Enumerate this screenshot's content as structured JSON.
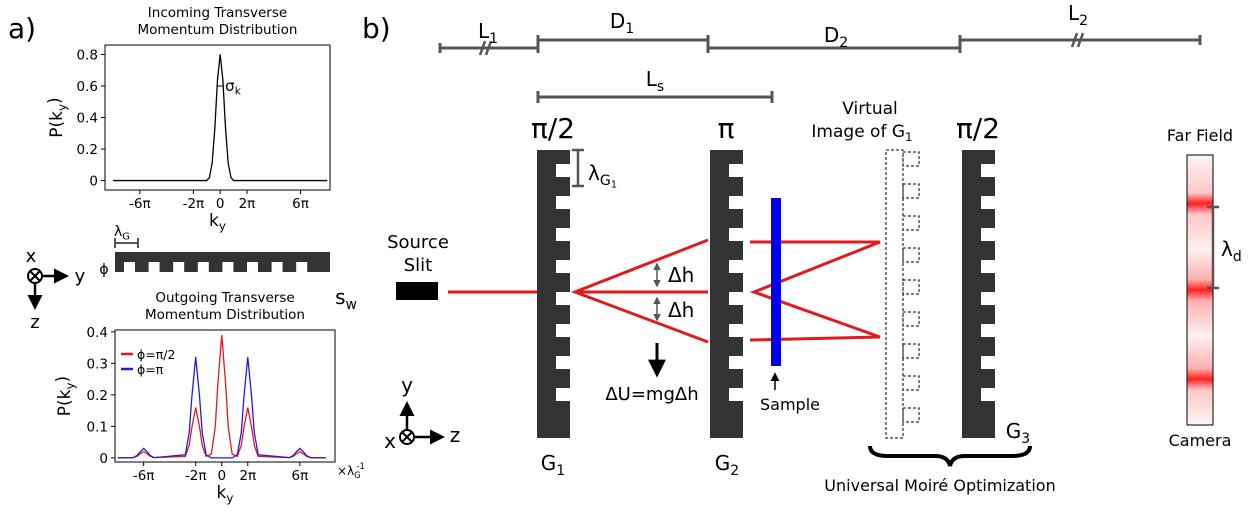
{
  "panels": {
    "a": "a)",
    "b": "b)"
  },
  "chart_data": [
    {
      "type": "line",
      "title": [
        "Incoming Transverse",
        "Momentum Distribution"
      ],
      "xlabel": {
        "main": "k",
        "sub": "y"
      },
      "ylabel": {
        "main": "P(k",
        "sub": "y",
        "end": ")"
      },
      "annotation": {
        "main": "σ",
        "sub": "k"
      },
      "x": [
        -8,
        -2,
        -1,
        -0.8,
        -0.6,
        -0.4,
        -0.2,
        0,
        0.2,
        0.4,
        0.6,
        0.8,
        1,
        2,
        8
      ],
      "values": [
        0,
        0,
        0,
        0.02,
        0.11,
        0.33,
        0.64,
        0.8,
        0.64,
        0.33,
        0.11,
        0.02,
        0,
        0,
        0
      ],
      "color": "#000000",
      "xlim": [
        -8.6,
        8.2
      ],
      "ylim": [
        -0.06,
        0.86
      ],
      "xticks": [
        {
          "value": -6,
          "label": "-6π"
        },
        {
          "value": -2,
          "label": "-2π"
        },
        0,
        {
          "value": 2,
          "label": "2π"
        },
        {
          "value": 6,
          "label": "6π"
        }
      ],
      "yticks": [
        0,
        0.2,
        0.4,
        0.6,
        0.8
      ]
    },
    {
      "type": "line",
      "title": [
        "Outgoing Transverse",
        "Momentum Distribution"
      ],
      "xlabel": {
        "main": "k",
        "sub": "y"
      },
      "ylabel": {
        "main": "P(k",
        "sub": "y",
        "end": ")"
      },
      "x_unit": {
        "main": "×λ",
        "sub": "G",
        "sup": "-1"
      },
      "x": [
        -8,
        -6.8,
        -6.5,
        -6.3,
        -6,
        -5.7,
        -5.5,
        -5.2,
        -2.8,
        -2.5,
        -2.3,
        -2,
        -1.7,
        -1.5,
        -1.2,
        -0.8,
        -0.5,
        -0.3,
        0,
        0.3,
        0.5,
        0.8,
        1.2,
        1.5,
        1.7,
        2,
        2.3,
        2.5,
        2.8,
        5.2,
        5.5,
        5.7,
        6,
        6.3,
        6.5,
        6.8,
        8
      ],
      "series": [
        {
          "name": "ϕ=π/2",
          "color": "#e31a1c",
          "values": [
            0,
            0.001,
            0.005,
            0.012,
            0.02,
            0.012,
            0.005,
            0.001,
            0.005,
            0.04,
            0.096,
            0.16,
            0.096,
            0.04,
            0.005,
            0.012,
            0.098,
            0.234,
            0.39,
            0.234,
            0.098,
            0.012,
            0.005,
            0.04,
            0.096,
            0.16,
            0.096,
            0.04,
            0.005,
            0.001,
            0.005,
            0.012,
            0.02,
            0.012,
            0.005,
            0.001,
            0
          ]
        },
        {
          "name": "ϕ=π",
          "color": "#1f1fd6",
          "values": [
            0,
            0.001,
            0.008,
            0.018,
            0.03,
            0.018,
            0.008,
            0.001,
            0.01,
            0.08,
            0.192,
            0.32,
            0.192,
            0.08,
            0.01,
            0,
            0,
            0,
            0,
            0,
            0,
            0,
            0.01,
            0.08,
            0.192,
            0.32,
            0.192,
            0.08,
            0.01,
            0.001,
            0.008,
            0.018,
            0.03,
            0.018,
            0.008,
            0.001,
            0
          ]
        }
      ],
      "legend": "upper left",
      "xlim": [
        -8.2,
        8.7
      ],
      "ylim": [
        -0.013,
        0.406
      ],
      "xticks": [
        {
          "value": -6,
          "label": "-6π"
        },
        {
          "value": -2,
          "label": "-2π"
        },
        0,
        {
          "value": 2,
          "label": "2π"
        },
        {
          "value": 6,
          "label": "6π"
        }
      ],
      "yticks": [
        0,
        0.1,
        0.2,
        0.3,
        0.4
      ]
    }
  ],
  "grating_a": {
    "period": {
      "main": "λ",
      "sub": "G"
    },
    "phase": "ϕ"
  },
  "axes_a": {
    "x": "x",
    "y": "y",
    "z": "z"
  },
  "diagram": {
    "top_scale": {
      "L1": {
        "main": "L",
        "sub": "1"
      },
      "D1": {
        "main": "D",
        "sub": "1"
      },
      "D2": {
        "main": "D",
        "sub": "2"
      },
      "L2": {
        "main": "L",
        "sub": "2"
      },
      "Ls": {
        "main": "L",
        "sub": "s"
      }
    },
    "phases": [
      "π/2",
      "π",
      "π/2"
    ],
    "grating_period": {
      "main": "λ",
      "sub": "G",
      "sub2": "1"
    },
    "source_slit": [
      "Source",
      "Slit"
    ],
    "slit_width": {
      "main": "s",
      "sub": "w"
    },
    "delta_h": [
      "Δh",
      "Δh"
    ],
    "energy": "ΔU=mgΔh",
    "sample": "Sample",
    "virtual_image": [
      "Virtual",
      {
        "main": "Image of G",
        "sub": "1"
      }
    ],
    "gratings": [
      {
        "main": "G",
        "sub": "1"
      },
      {
        "main": "G",
        "sub": "2"
      },
      {
        "main": "G",
        "sub": "3"
      }
    ],
    "far_field": "Far Field",
    "camera": "Camera",
    "fringe_period": {
      "main": "λ",
      "sub": "d"
    },
    "optimization": "Universal Moiré Optimization",
    "axes": {
      "x": "x",
      "y": "y",
      "z": "z"
    }
  }
}
